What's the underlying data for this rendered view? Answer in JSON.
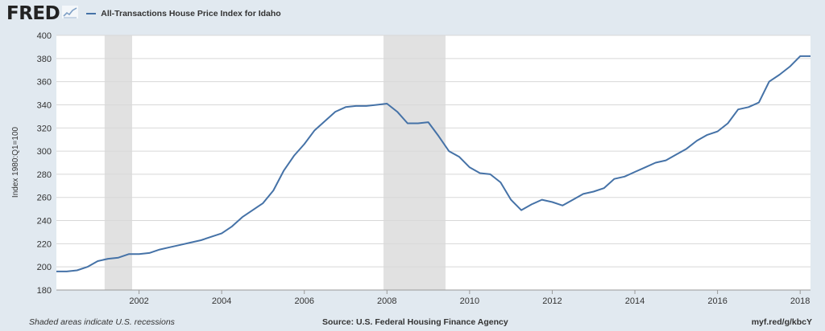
{
  "app": {
    "logo": "FRED"
  },
  "colors": {
    "series": "#4572a7",
    "plot_bg": "#ffffff",
    "page_bg": "#e1e9f0",
    "recession": "#e1e1e1",
    "grid": "#d8d8d8"
  },
  "footer": {
    "recession_note": "Shaded areas indicate U.S. recessions",
    "source": "Source: U.S. Federal Housing Finance Agency",
    "short_url": "myf.red/g/kbcY"
  },
  "chart_data": {
    "type": "line",
    "title": "",
    "xlabel": "",
    "ylabel": "Index 1980:Q1=100",
    "ylim": [
      180,
      400
    ],
    "yticks": [
      180,
      200,
      220,
      240,
      260,
      280,
      300,
      320,
      340,
      360,
      380,
      400
    ],
    "xlim": [
      2000.0,
      2018.25
    ],
    "xticks": [
      2002,
      2004,
      2006,
      2008,
      2010,
      2012,
      2014,
      2016,
      2018
    ],
    "grid": true,
    "legend_position": "top-left",
    "recessions": [
      [
        2001.167,
        2001.833
      ],
      [
        2007.917,
        2009.417
      ]
    ],
    "series": [
      {
        "name": "All-Transactions House Price Index for Idaho",
        "x": [
          2000.0,
          2000.25,
          2000.5,
          2000.75,
          2001.0,
          2001.25,
          2001.5,
          2001.75,
          2002.0,
          2002.25,
          2002.5,
          2002.75,
          2003.0,
          2003.25,
          2003.5,
          2003.75,
          2004.0,
          2004.25,
          2004.5,
          2004.75,
          2005.0,
          2005.25,
          2005.5,
          2005.75,
          2006.0,
          2006.25,
          2006.5,
          2006.75,
          2007.0,
          2007.25,
          2007.5,
          2007.75,
          2008.0,
          2008.25,
          2008.5,
          2008.75,
          2009.0,
          2009.25,
          2009.5,
          2009.75,
          2010.0,
          2010.25,
          2010.5,
          2010.75,
          2011.0,
          2011.25,
          2011.5,
          2011.75,
          2012.0,
          2012.25,
          2012.5,
          2012.75,
          2013.0,
          2013.25,
          2013.5,
          2013.75,
          2014.0,
          2014.25,
          2014.5,
          2014.75,
          2015.0,
          2015.25,
          2015.5,
          2015.75,
          2016.0,
          2016.25,
          2016.5,
          2016.75,
          2017.0,
          2017.25,
          2017.5,
          2017.75,
          2018.0,
          2018.25
        ],
        "values": [
          196,
          196,
          197,
          200,
          205,
          207,
          208,
          211,
          211,
          212,
          215,
          217,
          219,
          221,
          223,
          226,
          229,
          235,
          243,
          249,
          255,
          266,
          283,
          296,
          306,
          318,
          326,
          334,
          338,
          339,
          339,
          340,
          341,
          334,
          324,
          324,
          325,
          313,
          300,
          295,
          286,
          281,
          280,
          273,
          258,
          249,
          254,
          258,
          256,
          253,
          258,
          263,
          265,
          268,
          276,
          278,
          282,
          286,
          290,
          292,
          297,
          302,
          309,
          314,
          317,
          324,
          336,
          338,
          342,
          360,
          366,
          373,
          382,
          382
        ]
      }
    ]
  }
}
